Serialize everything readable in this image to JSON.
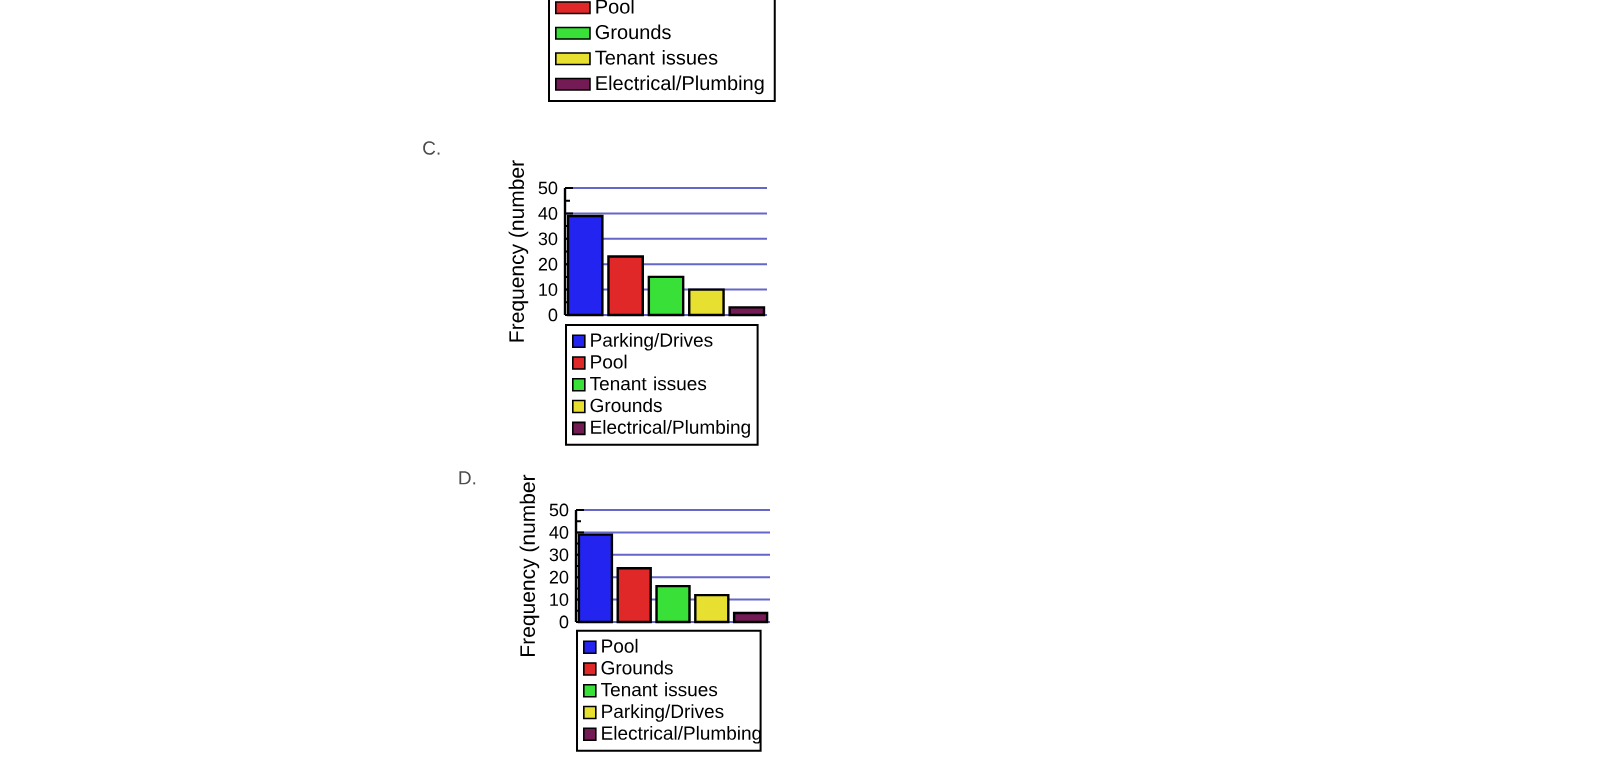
{
  "chart_data": [
    {
      "type": "other",
      "legend": "bottom",
      "series": [
        {
          "name": "Pool",
          "color": "#e02828"
        },
        {
          "name": "Grounds",
          "color": "#38e038"
        },
        {
          "name": "Tenant issues",
          "color": "#e8e030"
        },
        {
          "name": "Electrical/Plumbing",
          "color": "#741a55"
        }
      ]
    },
    {
      "type": "bar",
      "title": "C.",
      "ylabel": "Frequency (number",
      "categories": [
        null,
        null,
        null,
        null,
        null
      ],
      "ylim": [
        0,
        50
      ],
      "yticks": [
        0,
        10,
        20,
        30,
        40,
        50
      ],
      "grid": "y",
      "legend": "bottom",
      "series": [
        {
          "name": "Parking/Drives",
          "color": "#2424f0",
          "values": [
            39,
            null,
            null,
            null,
            null
          ]
        },
        {
          "name": "Pool",
          "color": "#e02828",
          "values": [
            null,
            23,
            null,
            null,
            null
          ]
        },
        {
          "name": "Tenant issues",
          "color": "#38e038",
          "values": [
            null,
            null,
            15,
            null,
            null
          ]
        },
        {
          "name": "Grounds",
          "color": "#e8e030",
          "values": [
            null,
            null,
            null,
            10,
            null
          ]
        },
        {
          "name": "Electrical/Plumbing",
          "color": "#741a55",
          "values": [
            null,
            null,
            null,
            null,
            3
          ]
        }
      ]
    },
    {
      "type": "bar",
      "title": "D.",
      "ylabel": "Frequency (number",
      "categories": [
        null,
        null,
        null,
        null,
        null
      ],
      "ylim": [
        0,
        50
      ],
      "yticks": [
        0,
        10,
        20,
        30,
        40,
        50
      ],
      "grid": "y",
      "legend": "bottom",
      "series": [
        {
          "name": "Pool",
          "color": "#2424f0",
          "values": [
            39,
            null,
            null,
            null,
            null
          ]
        },
        {
          "name": "Grounds",
          "color": "#e02828",
          "values": [
            null,
            24,
            null,
            null,
            null
          ]
        },
        {
          "name": "Tenant issues",
          "color": "#38e038",
          "values": [
            null,
            null,
            16,
            null,
            null
          ]
        },
        {
          "name": "Parking/Drives",
          "color": "#e8e030",
          "values": [
            null,
            null,
            null,
            12,
            null
          ]
        },
        {
          "name": "Electrical/Plumbing",
          "color": "#741a55",
          "values": [
            null,
            null,
            null,
            null,
            4
          ]
        }
      ]
    }
  ]
}
